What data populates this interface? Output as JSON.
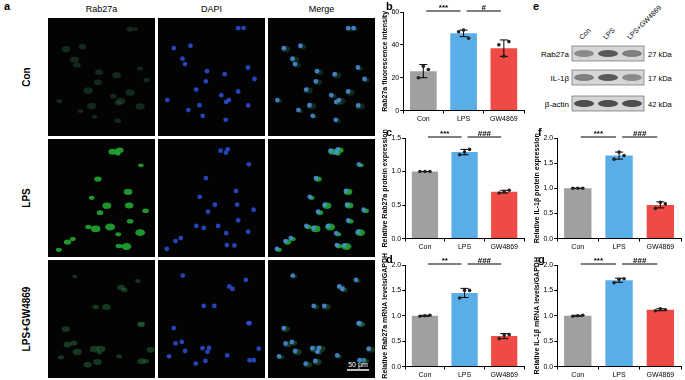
{
  "panel_a": {
    "panel": "a",
    "columns": [
      "Rab27a",
      "DAPI",
      "Merge"
    ],
    "rows": [
      "Con",
      "LPS",
      "LPS+GW4869"
    ],
    "scale_bar": "50 μm"
  },
  "panel_e": {
    "panel": "e",
    "lanes": [
      "Con",
      "LPS",
      "LPS+GW4869"
    ],
    "bands": [
      {
        "protein": "Rab27a",
        "size": "27 kDa"
      },
      {
        "protein": "IL-1β",
        "size": "17 kDa"
      },
      {
        "protein": "β-actin",
        "size": "42 kDa"
      }
    ]
  },
  "chart_data": [
    {
      "panel": "b",
      "type": "bar",
      "y_label": "Rab27a fluorescence intensity",
      "categories": [
        "Con",
        "LPS",
        "GW4869"
      ],
      "values": [
        24,
        47,
        38
      ],
      "errors": [
        4,
        2,
        5
      ],
      "points": [
        [
          20,
          27,
          25
        ],
        [
          48,
          49,
          44
        ],
        [
          40,
          33,
          42
        ]
      ],
      "colors": [
        "#a0a0a0",
        "#5aaee8",
        "#ef4b46"
      ],
      "ylim": [
        0,
        60
      ],
      "yticks": [
        0,
        20,
        40,
        60
      ],
      "grid": false,
      "annotations": [
        {
          "between": [
            "Con",
            "LPS"
          ],
          "text": "***"
        },
        {
          "between": [
            "LPS",
            "GW4869"
          ],
          "text": "#"
        }
      ]
    },
    {
      "panel": "c",
      "type": "bar",
      "y_label": "Relative Rab27a protein expression",
      "categories": [
        "Con",
        "LPS",
        "GW4869"
      ],
      "values": [
        1.0,
        1.29,
        0.7
      ],
      "errors": [
        0,
        0.04,
        0.02
      ],
      "points": [
        [
          1,
          1,
          1
        ],
        [
          1.25,
          1.29,
          1.33
        ],
        [
          0.68,
          0.7,
          0.72
        ]
      ],
      "colors": [
        "#a0a0a0",
        "#5aaee8",
        "#ef4b46"
      ],
      "ylim": [
        0,
        1.5
      ],
      "yticks": [
        {
          "value": 0,
          "label": "0.0"
        },
        {
          "value": 0.5,
          "label": "0.5"
        },
        {
          "value": 1,
          "label": "1.0"
        },
        {
          "value": 1.5,
          "label": "1.5"
        }
      ],
      "grid": false,
      "annotations": [
        {
          "between": [
            "Con",
            "LPS"
          ],
          "text": "***"
        },
        {
          "between": [
            "LPS",
            "GW4869"
          ],
          "text": "###"
        }
      ]
    },
    {
      "panel": "d",
      "type": "bar",
      "y_label": "Relative Rab27a mRNA levels/GAPDH",
      "categories": [
        "Con",
        "LPS",
        "GW4869"
      ],
      "values": [
        1.0,
        1.45,
        0.6
      ],
      "errors": [
        0.01,
        0.09,
        0.05
      ],
      "points": [
        [
          0.99,
          1.0,
          1.01
        ],
        [
          1.35,
          1.5,
          1.5
        ],
        [
          0.55,
          0.62,
          0.63
        ]
      ],
      "colors": [
        "#a0a0a0",
        "#5aaee8",
        "#ef4b46"
      ],
      "ylim": [
        0,
        2
      ],
      "yticks": [
        {
          "value": 0,
          "label": "0.0"
        },
        {
          "value": 0.5,
          "label": "0.5"
        },
        {
          "value": 1,
          "label": "1.0"
        },
        {
          "value": 1.5,
          "label": "1.5"
        },
        {
          "value": 2,
          "label": "2.0"
        }
      ],
      "grid": false,
      "annotations": [
        {
          "between": [
            "Con",
            "LPS"
          ],
          "text": "**"
        },
        {
          "between": [
            "LPS",
            "GW4869"
          ],
          "text": "###"
        }
      ]
    },
    {
      "panel": "f",
      "type": "bar",
      "y_label": "Relative IL-1β protein expression",
      "categories": [
        "Con",
        "LPS",
        "GW4869"
      ],
      "values": [
        1.0,
        1.65,
        0.67
      ],
      "errors": [
        0,
        0.07,
        0.06
      ],
      "points": [
        [
          1,
          1,
          1
        ],
        [
          1.58,
          1.72,
          1.65
        ],
        [
          0.6,
          0.72,
          0.69
        ]
      ],
      "colors": [
        "#a0a0a0",
        "#5aaee8",
        "#ef4b46"
      ],
      "ylim": [
        0,
        2
      ],
      "yticks": [
        {
          "value": 0,
          "label": "0.0"
        },
        {
          "value": 0.5,
          "label": "0.5"
        },
        {
          "value": 1,
          "label": "1.0"
        },
        {
          "value": 1.5,
          "label": "1.5"
        },
        {
          "value": 2,
          "label": "2.0"
        }
      ],
      "grid": false,
      "annotations": [
        {
          "between": [
            "Con",
            "LPS"
          ],
          "text": "***"
        },
        {
          "between": [
            "LPS",
            "GW4869"
          ],
          "text": "###"
        }
      ]
    },
    {
      "panel": "g",
      "type": "bar",
      "y_label": "Relative IL-1β mRNA levels/GAPDH",
      "categories": [
        "Con",
        "LPS",
        "GW4869"
      ],
      "values": [
        1.0,
        1.7,
        1.12
      ],
      "errors": [
        0.01,
        0.04,
        0.02
      ],
      "points": [
        [
          0.99,
          1.0,
          1.01
        ],
        [
          1.65,
          1.72,
          1.73
        ],
        [
          1.1,
          1.14,
          1.12
        ]
      ],
      "colors": [
        "#a0a0a0",
        "#5aaee8",
        "#ef4b46"
      ],
      "ylim": [
        0,
        2
      ],
      "yticks": [
        {
          "value": 0,
          "label": "0.0"
        },
        {
          "value": 0.5,
          "label": "0.5"
        },
        {
          "value": 1,
          "label": "1.0"
        },
        {
          "value": 1.5,
          "label": "1.5"
        },
        {
          "value": 2,
          "label": "2.0"
        }
      ],
      "grid": false,
      "annotations": [
        {
          "between": [
            "Con",
            "LPS"
          ],
          "text": "***"
        },
        {
          "between": [
            "LPS",
            "GW4869"
          ],
          "text": "###"
        }
      ]
    }
  ]
}
